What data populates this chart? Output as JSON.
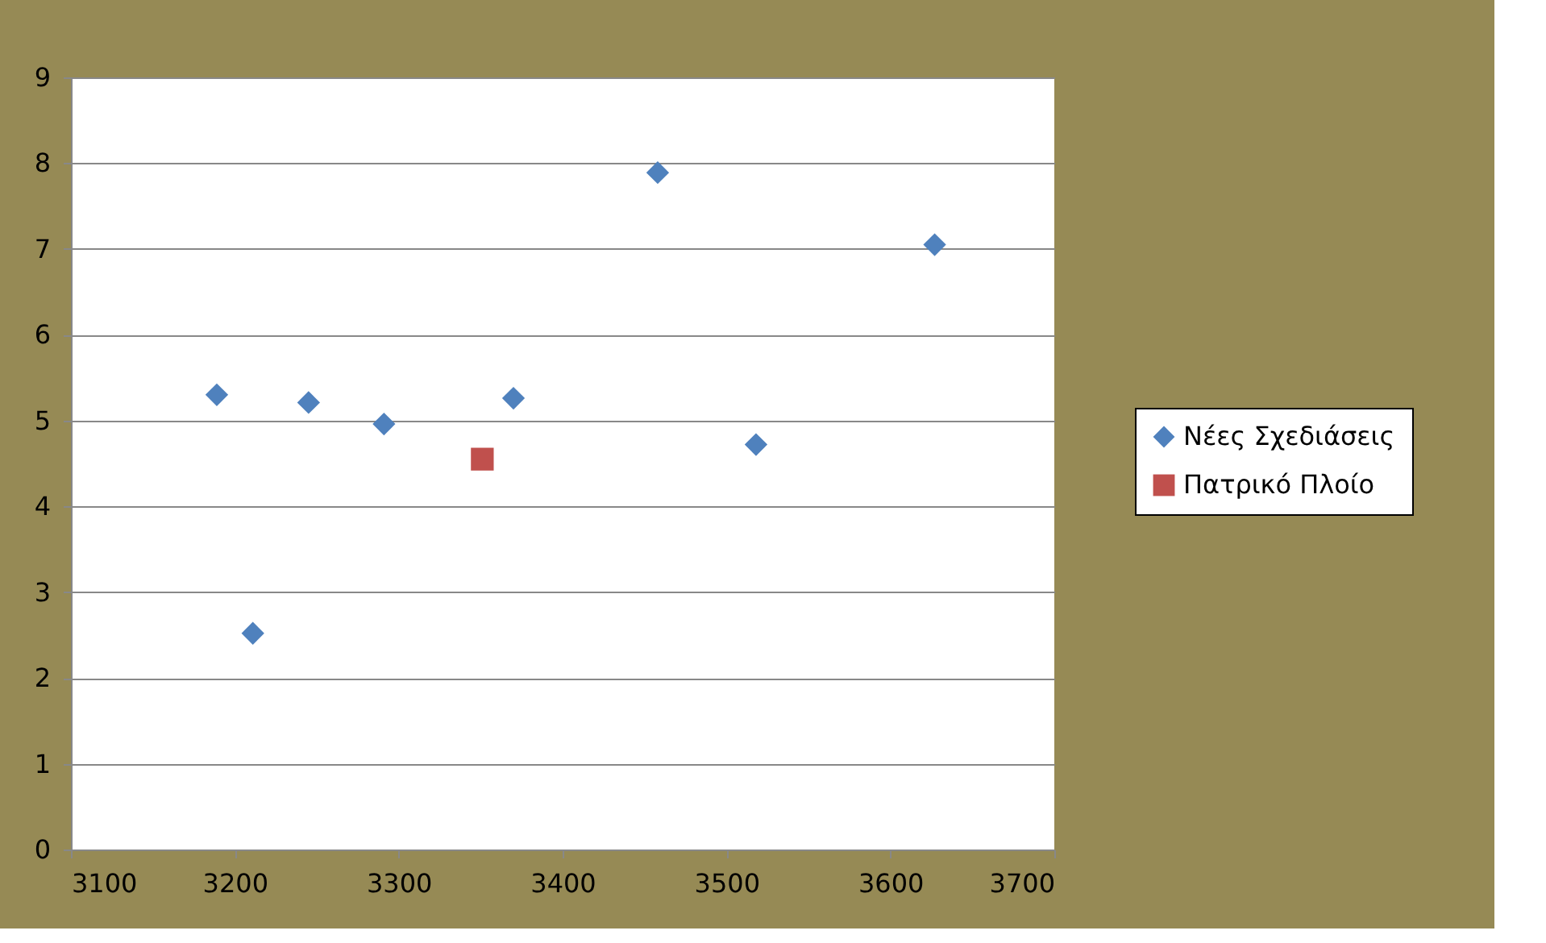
{
  "chart_data": {
    "type": "scatter",
    "series": [
      {
        "name": "Νέες Σχεδιάσεις",
        "color": "#4f81bd",
        "marker": "diamond",
        "x": [
          3189,
          3211,
          3245,
          3291,
          3370,
          3458,
          3518,
          3627
        ],
        "values": [
          5.3,
          2.52,
          5.21,
          4.96,
          5.26,
          7.89,
          4.72,
          7.05
        ]
      },
      {
        "name": "Πατρικό Πλοίο",
        "color": "#c0504d",
        "marker": "square",
        "x": [
          3351
        ],
        "values": [
          4.55
        ]
      }
    ],
    "xlim": [
      3100,
      3700
    ],
    "xticks": [
      3100,
      3200,
      3300,
      3400,
      3500,
      3600,
      3700
    ],
    "ylim": [
      0,
      9
    ],
    "yticks": [
      0,
      1,
      2,
      3,
      4,
      5,
      6,
      7,
      8,
      9
    ],
    "grid": "y",
    "legend": "right"
  }
}
